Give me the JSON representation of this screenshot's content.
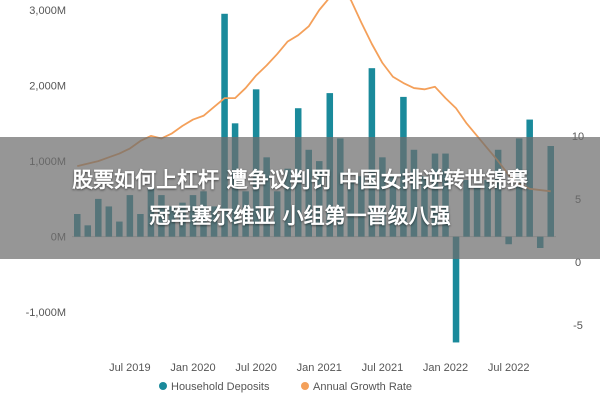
{
  "chart_data": {
    "type": "bar",
    "x": [
      "2019-02",
      "2019-03",
      "2019-04",
      "2019-05",
      "2019-06",
      "2019-07",
      "2019-08",
      "2019-09",
      "2019-10",
      "2019-11",
      "2019-12",
      "2020-01",
      "2020-02",
      "2020-03",
      "2020-04",
      "2020-05",
      "2020-06",
      "2020-07",
      "2020-08",
      "2020-09",
      "2020-10",
      "2020-11",
      "2020-12",
      "2021-01",
      "2021-02",
      "2021-03",
      "2021-04",
      "2021-05",
      "2021-06",
      "2021-07",
      "2021-08",
      "2021-09",
      "2021-10",
      "2021-11",
      "2021-12",
      "2022-01",
      "2022-02",
      "2022-03",
      "2022-04",
      "2022-05",
      "2022-06",
      "2022-07",
      "2022-08",
      "2022-09",
      "2022-10",
      "2022-11"
    ],
    "series": [
      {
        "name": "Household Deposits",
        "axis": "left",
        "values": [
          300,
          150,
          500,
          400,
          200,
          550,
          300,
          650,
          550,
          400,
          450,
          550,
          600,
          400,
          2950,
          1500,
          600,
          1950,
          1050,
          600,
          900,
          1700,
          1150,
          1000,
          1900,
          1300,
          750,
          800,
          2230,
          1050,
          800,
          1850,
          1150,
          800,
          1100,
          1100,
          -1400,
          750,
          650,
          750,
          1150,
          -100,
          1300,
          1550,
          -150,
          1200
        ]
      },
      {
        "name": "Annual Growth Rate",
        "axis": "right",
        "values": [
          7.6,
          7.8,
          8.0,
          8.3,
          8.6,
          9.0,
          9.6,
          10.0,
          9.8,
          10.2,
          10.8,
          11.3,
          11.6,
          12.3,
          13.0,
          13.0,
          13.8,
          14.8,
          15.6,
          16.5,
          17.5,
          18.0,
          18.7,
          20.0,
          21.0,
          21.5,
          20.8,
          19.0,
          17.3,
          15.8,
          14.7,
          14.2,
          13.8,
          13.7,
          13.9,
          13.0,
          12.2,
          11.0,
          10.0,
          9.0,
          8.0,
          6.9,
          6.2,
          5.8,
          5.7,
          5.6
        ]
      }
    ],
    "left_axis": {
      "ylim": [
        -1500,
        3000
      ],
      "ticks": [
        3000,
        2000,
        1000,
        0,
        -1000
      ],
      "tick_labels": [
        "3,000M",
        "2,000M",
        "1,000M",
        "0M",
        "-1,000M"
      ]
    },
    "right_axis": {
      "ylim": [
        -7,
        20
      ],
      "ticks": [
        10,
        5,
        0,
        -5
      ],
      "tick_labels": [
        "10",
        "5",
        "0",
        "-5"
      ]
    },
    "x_ticks": [
      {
        "at": "2019-07",
        "label": "Jul 2019"
      },
      {
        "at": "2020-01",
        "label": "Jan 2020"
      },
      {
        "at": "2020-07",
        "label": "Jul 2020"
      },
      {
        "at": "2021-01",
        "label": "Jan 2021"
      },
      {
        "at": "2021-07",
        "label": "Jul 2021"
      },
      {
        "at": "2022-01",
        "label": "Jan 2022"
      },
      {
        "at": "2022-07",
        "label": "Jul 2022"
      }
    ],
    "legend_position": "bottom",
    "grid": false,
    "colors": {
      "bars": "#1a8a9b",
      "line": "#f4a05a",
      "zero_line": "#c9c9c9"
    }
  },
  "legend": {
    "deposits_label": "Household Deposits",
    "growth_label": "Annual Growth Rate"
  },
  "overlay": {
    "line1": "股票如何上杠杆 遭争议判罚 中国女排逆转世锦赛",
    "line2": "冠军塞尔维亚 小组第一晋级八强"
  }
}
